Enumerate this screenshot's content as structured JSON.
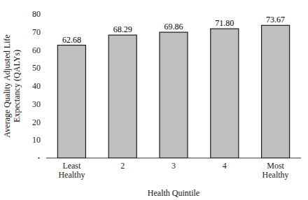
{
  "chart_data": {
    "type": "bar",
    "categories": [
      "Least\nHealthy",
      "2",
      "3",
      "4",
      "Most\nHealthy"
    ],
    "values": [
      62.68,
      68.29,
      69.86,
      71.8,
      73.67
    ],
    "value_labels": [
      "62.68",
      "68.29",
      "69.86",
      "71.80",
      "73.67"
    ],
    "data_labels": true,
    "color": "#bfbfbf",
    "xlabel": "Health Quintile",
    "ylabel": "Average Quality Adjusted Life\nExpectancy (QALYs)",
    "ylim": [
      0,
      80
    ],
    "yticks": [
      {
        "value": 0,
        "label": "·"
      },
      10,
      20,
      30,
      40,
      50,
      60,
      70,
      80
    ],
    "grid": false
  }
}
